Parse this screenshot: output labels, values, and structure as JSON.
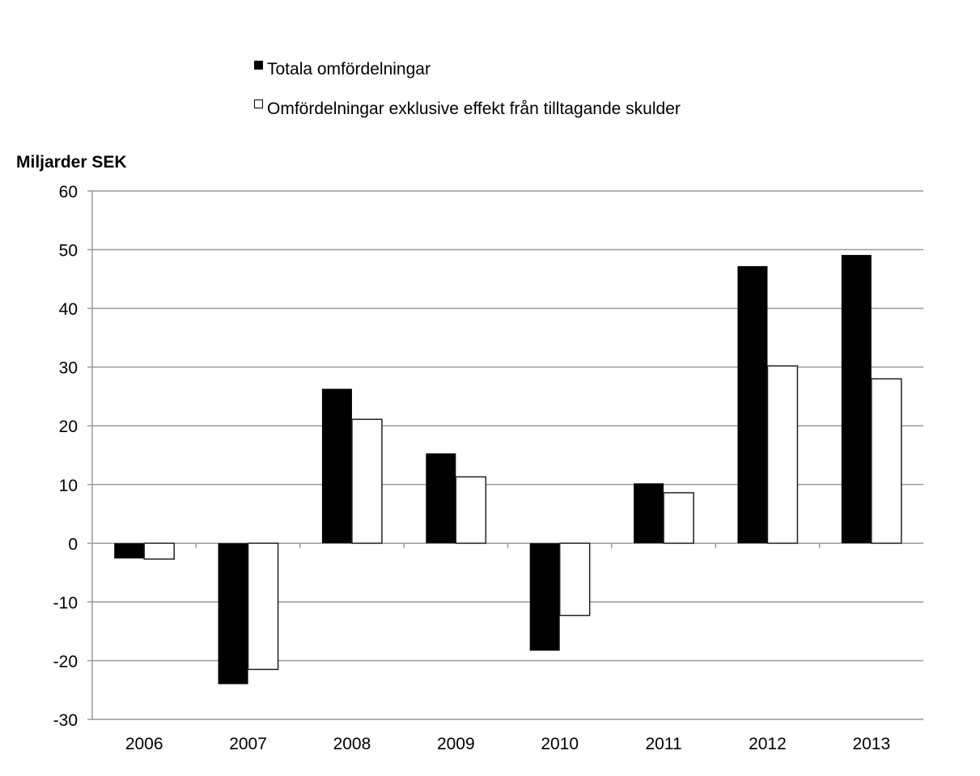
{
  "chart_data": {
    "type": "bar",
    "title": "",
    "xlabel": "",
    "ylabel": "Miljarder SEK",
    "ylim": [
      -30,
      60
    ],
    "yticks": [
      -30,
      -20,
      -10,
      0,
      10,
      20,
      30,
      40,
      50,
      60
    ],
    "grid": true,
    "legend_position": "top",
    "categories": [
      "2006",
      "2007",
      "2008",
      "2009",
      "2010",
      "2011",
      "2012",
      "2013"
    ],
    "series": [
      {
        "name": "Totala omfördelningar",
        "color": "#000000",
        "values": [
          -2.6,
          -24.0,
          26.3,
          15.3,
          -18.3,
          10.2,
          47.2,
          49.1
        ]
      },
      {
        "name": "Omfördelningar exklusive effekt från tilltagande skulder",
        "color": "#ffffff",
        "values": [
          -2.7,
          -21.5,
          21.1,
          11.3,
          -12.3,
          8.6,
          30.2,
          28.0
        ]
      }
    ]
  }
}
